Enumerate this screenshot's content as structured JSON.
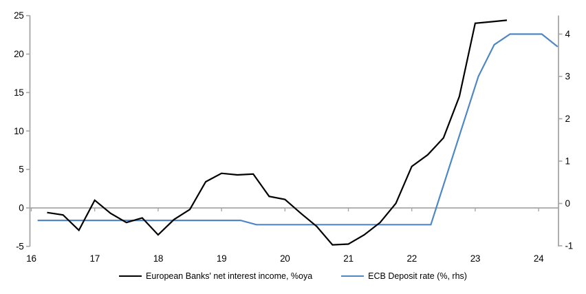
{
  "chart_data": {
    "type": "line",
    "title": "",
    "description": "Dual-axis quarterly line chart comparing European banks' net interest income growth with the ECB deposit rate, 2016-2024",
    "grid": "zero-gridline-only",
    "legend_position": "bottom-center",
    "background_color": "#ffffff",
    "axis_color": "#a6a6a6",
    "x_axis": {
      "tick_values": [
        16,
        17,
        18,
        19,
        20,
        21,
        22,
        23,
        24
      ],
      "tick_labels": [
        "16",
        "17",
        "18",
        "19",
        "20",
        "21",
        "22",
        "23",
        "24"
      ],
      "range": [
        16,
        24.31
      ]
    },
    "left_axis": {
      "tick_values": [
        25,
        20,
        15,
        10,
        5,
        0,
        -5
      ],
      "tick_labels": [
        "25",
        "20",
        "15",
        "10",
        "5",
        "0",
        "-5"
      ],
      "range": [
        -5,
        25
      ]
    },
    "right_axis": {
      "tick_values": [
        4,
        3,
        2,
        1,
        0,
        -1
      ],
      "tick_labels": [
        "4",
        "3",
        "2",
        "1",
        "0",
        "-1"
      ],
      "range": [
        -1.05,
        4.43
      ]
    },
    "series": [
      {
        "name": "European Banks' net interest income, %oya",
        "type": "line",
        "color": "#000000",
        "axis": "left",
        "x": [
          16.25,
          16.5,
          16.75,
          17.0,
          17.25,
          17.5,
          17.75,
          18.0,
          18.25,
          18.5,
          18.75,
          19.0,
          19.25,
          19.5,
          19.75,
          20.0,
          20.25,
          20.5,
          20.75,
          21.0,
          21.25,
          21.5,
          21.75,
          22.0,
          22.25,
          22.5,
          22.75,
          23.0,
          23.25,
          23.5
        ],
        "values": [
          -0.6,
          -0.9,
          -2.9,
          1.0,
          -0.7,
          -1.9,
          -1.3,
          -3.5,
          -1.5,
          -0.2,
          3.4,
          4.5,
          4.3,
          4.4,
          1.5,
          1.1,
          -0.7,
          -2.4,
          -4.8,
          -4.7,
          -3.5,
          -1.9,
          0.6,
          5.4,
          6.9,
          9.1,
          14.5,
          24.0,
          24.2,
          24.4
        ]
      },
      {
        "name": "ECB Deposit rate (%, rhs)",
        "type": "line",
        "color": "#4e87c5",
        "axis": "right",
        "x": [
          16.1,
          19.3,
          19.55,
          22.3,
          23.05,
          23.3,
          23.55,
          24.05,
          24.3
        ],
        "values": [
          -0.4,
          -0.4,
          -0.5,
          -0.5,
          3.0,
          3.75,
          4.0,
          4.0,
          3.7
        ]
      }
    ]
  }
}
